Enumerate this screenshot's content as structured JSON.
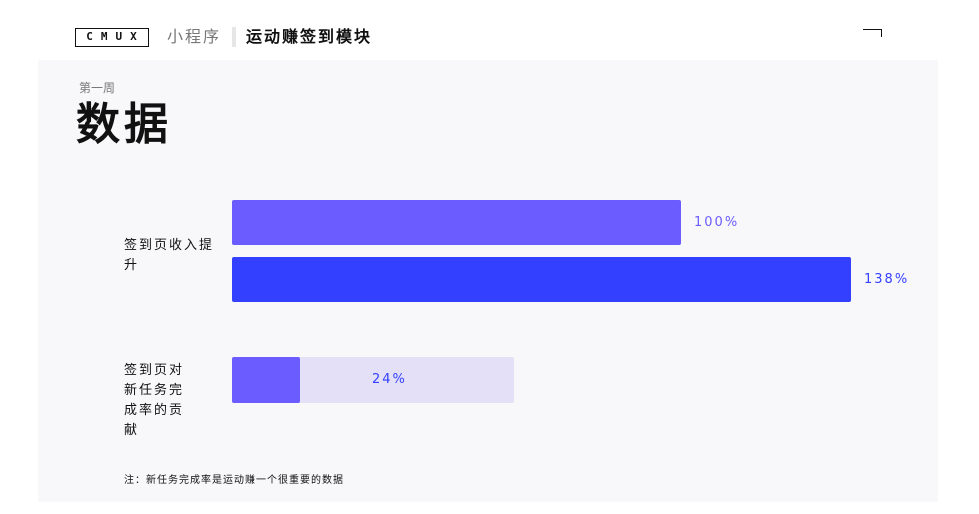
{
  "header": {
    "logo": "CMUX",
    "title": "小程序",
    "subtitle": "运动赚签到模块"
  },
  "week_label": "第一周",
  "section_title": "数据",
  "footnote": "注：新任务完成率是运动赚一个很重要的数据",
  "colors": {
    "bar_light": "#6b5cff",
    "bar_dark": "#3440ff",
    "track": "#e3e0f7",
    "label_light": "#6b5cff",
    "label_dark": "#3440ff",
    "panel": "#f8f8fa"
  },
  "chart_data": [
    {
      "type": "bar",
      "orientation": "horizontal",
      "category": "签到页收入提升",
      "series": [
        {
          "values": [
            100
          ],
          "label": "100%"
        },
        {
          "values": [
            138
          ],
          "label": "138%"
        }
      ],
      "xlim": [
        0,
        138
      ]
    },
    {
      "type": "bar",
      "orientation": "horizontal",
      "category": "签到页对新任务完成率的贡献",
      "series": [
        {
          "values": [
            24
          ],
          "label": "24%"
        }
      ],
      "xlim": [
        0,
        100
      ]
    }
  ]
}
